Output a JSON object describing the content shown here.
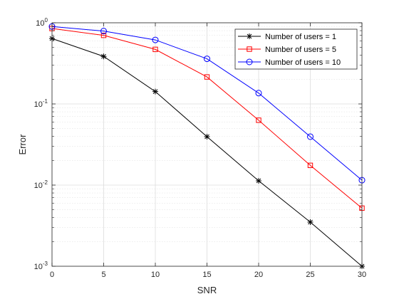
{
  "chart_data": {
    "type": "line",
    "xlabel": "SNR",
    "ylabel": "Error",
    "xlim": [
      0,
      30
    ],
    "ylim": [
      0.001,
      1
    ],
    "yscale": "log",
    "grid": true,
    "minor_grid": true,
    "legend_position": "top-right",
    "x_ticks": [
      0,
      5,
      10,
      15,
      20,
      25,
      30
    ],
    "y_ticks": [
      {
        "value": 1,
        "base": "10",
        "exp": "0"
      },
      {
        "value": 0.1,
        "base": "10",
        "exp": "-1"
      },
      {
        "value": 0.01,
        "base": "10",
        "exp": "-2"
      },
      {
        "value": 0.001,
        "base": "10",
        "exp": "-3"
      }
    ],
    "x": [
      0,
      5,
      10,
      15,
      20,
      25,
      30
    ],
    "series": [
      {
        "name": "Number of users = 1",
        "color": "#000000",
        "marker": "asterisk",
        "values": [
          0.64,
          0.385,
          0.142,
          0.0395,
          0.0113,
          0.0035,
          0.001
        ]
      },
      {
        "name": "Number of users = 5",
        "color": "#ff0000",
        "marker": "square",
        "values": [
          0.85,
          0.7,
          0.47,
          0.215,
          0.063,
          0.0175,
          0.0052
        ]
      },
      {
        "name": "Number of users = 10",
        "color": "#0000ff",
        "marker": "circle",
        "values": [
          0.9,
          0.79,
          0.615,
          0.36,
          0.136,
          0.0395,
          0.0115
        ]
      }
    ]
  }
}
